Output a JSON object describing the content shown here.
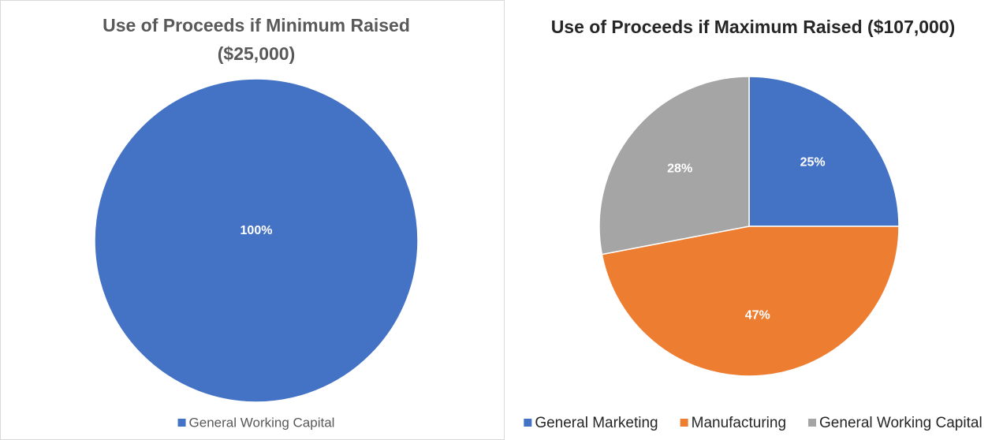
{
  "chart_data": [
    {
      "type": "pie",
      "title": "Use of Proceeds if Minimum Raised ($25,000)",
      "categories": [
        "General Working Capital"
      ],
      "values": [
        100
      ],
      "value_labels": [
        "100%"
      ],
      "colors": [
        "#4472c4"
      ],
      "legend": "bottom"
    },
    {
      "type": "pie",
      "title": "Use of Proceeds if Maximum Raised ($107,000)",
      "categories": [
        "General Marketing",
        "Manufacturing",
        "General Working Capital"
      ],
      "values": [
        25,
        47,
        28
      ],
      "value_labels": [
        "25%",
        "47%",
        "28%"
      ],
      "colors": [
        "#4472c4",
        "#ed7d31",
        "#a5a5a5"
      ],
      "legend": "bottom"
    }
  ]
}
